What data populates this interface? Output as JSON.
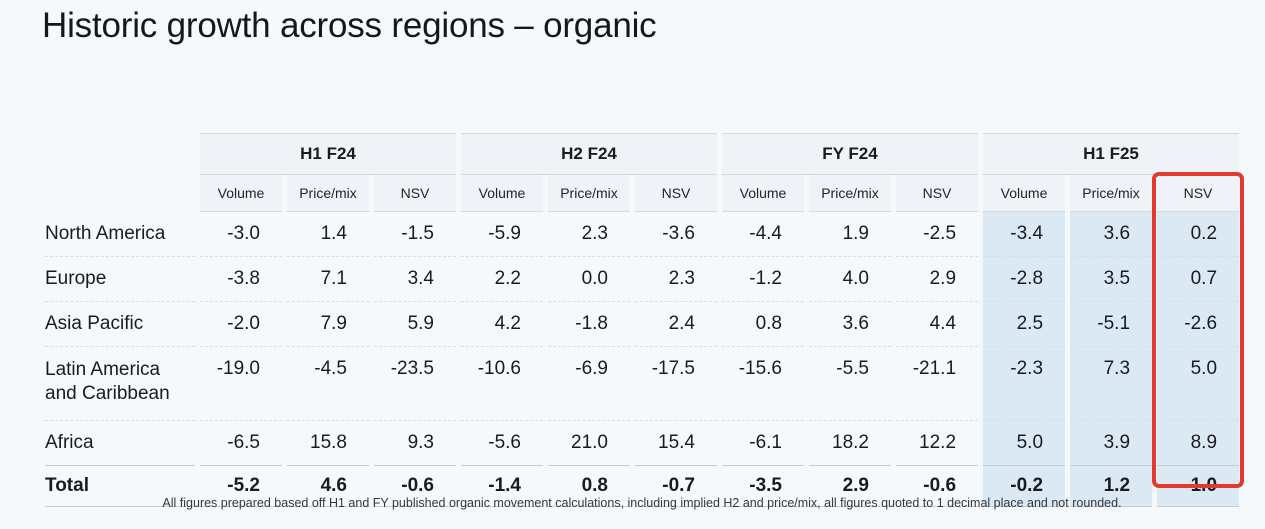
{
  "title": "Historic growth across regions – organic",
  "colors": {
    "page_background": "#f5f9fc",
    "highlight_blue": "#dbe9f5",
    "callout_red": "#e23a2e"
  },
  "table": {
    "groups": [
      {
        "label": "H1 F24"
      },
      {
        "label": "H2 F24"
      },
      {
        "label": "FY F24"
      },
      {
        "label": "H1 F25",
        "highlighted": true
      }
    ],
    "columns": [
      "Volume",
      "Price/mix",
      "NSV",
      "Volume",
      "Price/mix",
      "NSV",
      "Volume",
      "Price/mix",
      "NSV",
      "Volume",
      "Price/mix",
      "NSV"
    ],
    "callout": "H1 F25 NSV column outlined in red",
    "rows": [
      {
        "label": "North America",
        "values": [
          "-3.0",
          "1.4",
          "-1.5",
          "-5.9",
          "2.3",
          "-3.6",
          "-4.4",
          "1.9",
          "-2.5",
          "-3.4",
          "3.6",
          "0.2"
        ]
      },
      {
        "label": "Europe",
        "values": [
          "-3.8",
          "7.1",
          "3.4",
          "2.2",
          "0.0",
          "2.3",
          "-1.2",
          "4.0",
          "2.9",
          "-2.8",
          "3.5",
          "0.7"
        ]
      },
      {
        "label": "Asia Pacific",
        "values": [
          "-2.0",
          "7.9",
          "5.9",
          "4.2",
          "-1.8",
          "2.4",
          "0.8",
          "3.6",
          "4.4",
          "2.5",
          "-5.1",
          "-2.6"
        ]
      },
      {
        "label": "Latin America and Caribbean",
        "values": [
          "-19.0",
          "-4.5",
          "-23.5",
          "-10.6",
          "-6.9",
          "-17.5",
          "-15.6",
          "-5.5",
          "-21.1",
          "-2.3",
          "7.3",
          "5.0"
        ]
      },
      {
        "label": "Africa",
        "values": [
          "-6.5",
          "15.8",
          "9.3",
          "-5.6",
          "21.0",
          "15.4",
          "-6.1",
          "18.2",
          "12.2",
          "5.0",
          "3.9",
          "8.9"
        ]
      }
    ],
    "total_row": {
      "label": "Total",
      "values": [
        "-5.2",
        "4.6",
        "-0.6",
        "-1.4",
        "0.8",
        "-0.7",
        "-3.5",
        "2.9",
        "-0.6",
        "-0.2",
        "1.2",
        "1.0"
      ]
    }
  },
  "footnote": "All figures prepared based off H1 and FY published organic movement calculations, including implied H2 and price/mix, all figures quoted to 1 decimal place and not rounded."
}
